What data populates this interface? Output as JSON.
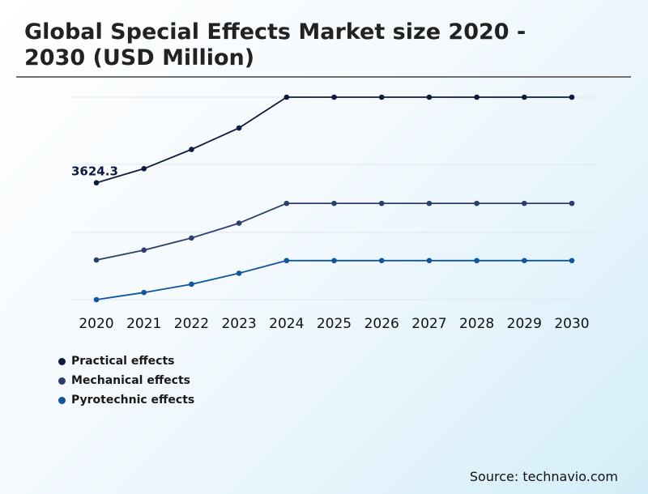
{
  "chart_data": {
    "type": "line",
    "title": "Global Special Effects Market size 2020 - 2030 (USD Million)",
    "categories": [
      "2020",
      "2021",
      "2022",
      "2023",
      "2024",
      "2025",
      "2026",
      "2027",
      "2028",
      "2029",
      "2030"
    ],
    "grid": true,
    "legend_position": "bottom-left",
    "series": [
      {
        "name": "Practical effects",
        "color": "#0d1b3e",
        "values": [
          3624.3,
          3880,
          4230,
          4620,
          5180,
          5180,
          5180,
          5180,
          5180,
          5180,
          5180
        ]
      },
      {
        "name": "Mechanical effects",
        "color": "#2b3f6c",
        "values": [
          2220,
          2400,
          2620,
          2890,
          3250,
          3250,
          3250,
          3250,
          3250,
          3250,
          3250
        ]
      },
      {
        "name": "Pyrotechnic effects",
        "color": "#0f56a0",
        "values": [
          1500,
          1630,
          1780,
          1980,
          2210,
          2210,
          2210,
          2210,
          2210,
          2210,
          2210
        ]
      }
    ],
    "ylim": [
      1500,
      5180
    ],
    "annotations": [
      {
        "series": 0,
        "index": 0,
        "text": "3624.3"
      }
    ]
  },
  "source": "Source: technavio.com"
}
